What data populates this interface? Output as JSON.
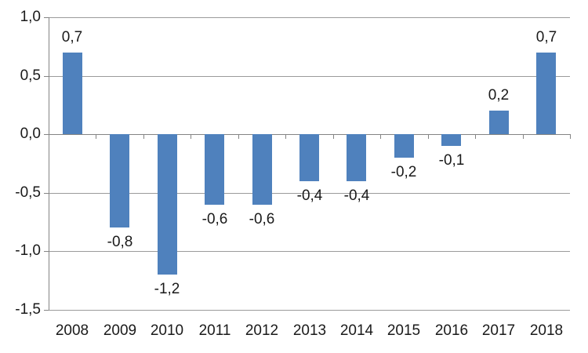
{
  "chart_data": {
    "type": "bar",
    "title": "",
    "xlabel": "",
    "ylabel": "",
    "categories": [
      "2008",
      "2009",
      "2010",
      "2011",
      "2012",
      "2013",
      "2014",
      "2015",
      "2016",
      "2017",
      "2018"
    ],
    "values": [
      0.7,
      -0.8,
      -1.2,
      -0.6,
      -0.6,
      -0.4,
      -0.4,
      -0.2,
      -0.1,
      0.2,
      0.7
    ],
    "value_labels": [
      "0,7",
      "-0,8",
      "-1,2",
      "-0,6",
      "-0,6",
      "-0,4",
      "-0,4",
      "-0,2",
      "-0,1",
      "0,2",
      "0,7"
    ],
    "ylim": [
      -1.5,
      1.0
    ],
    "y_ticks": [
      {
        "label": "1,0",
        "value": 1.0
      },
      {
        "label": "0,5",
        "value": 0.5
      },
      {
        "label": "0,0",
        "value": 0.0
      },
      {
        "label": "-0,5",
        "value": -0.5
      },
      {
        "label": "-1,0",
        "value": -1.0
      },
      {
        "label": "-1,5",
        "value": -1.5
      }
    ],
    "grid": true,
    "legend": "none",
    "decimal_separator": ",",
    "bar_color": "#4F81BD",
    "gridline_color": "#9b9b9b",
    "axis_color": "#848484",
    "text_color": "#1a1a1a"
  }
}
